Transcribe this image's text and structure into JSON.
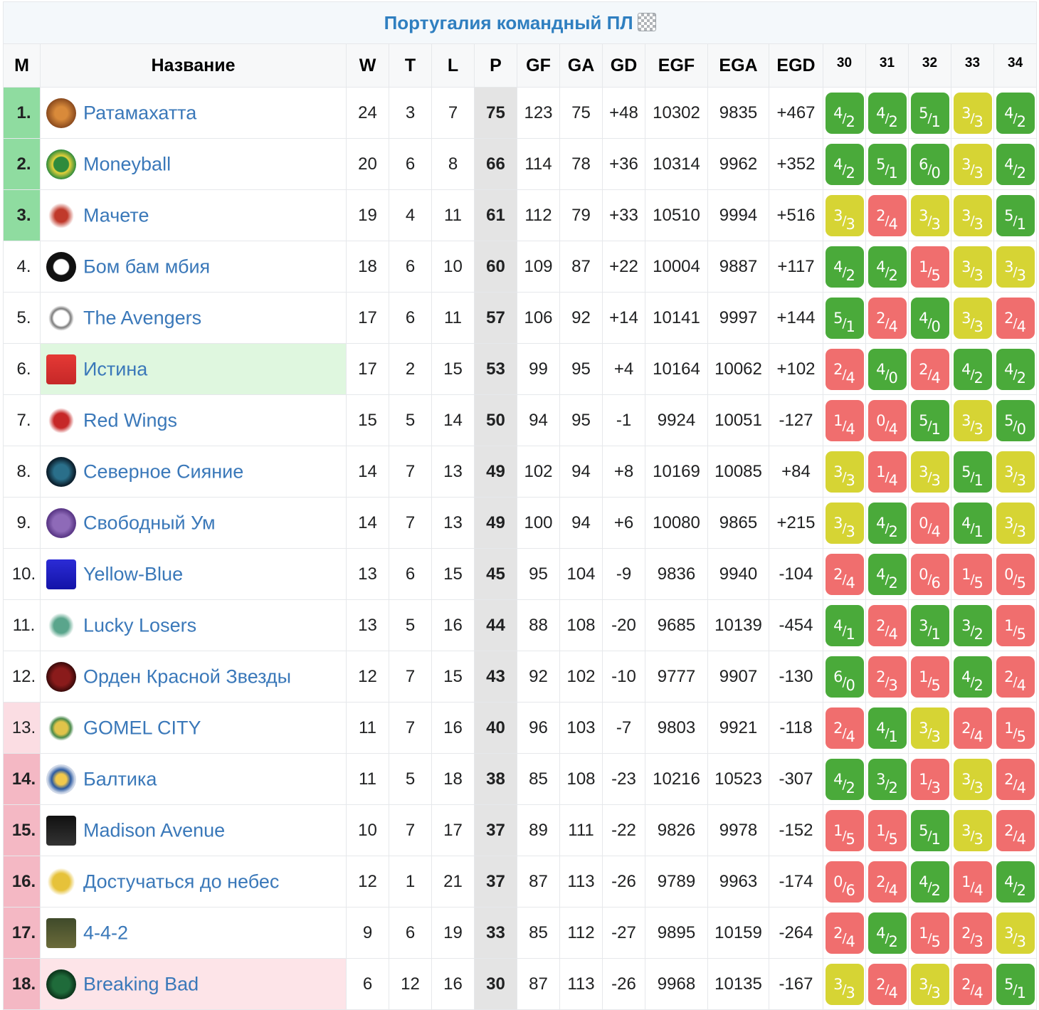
{
  "title": "Португалия командный ПЛ",
  "headers": {
    "pos": "М",
    "name": "Название",
    "w": "W",
    "t": "T",
    "l": "L",
    "p": "P",
    "gf": "GF",
    "ga": "GA",
    "gd": "GD",
    "egf": "EGF",
    "ega": "EGA",
    "egd": "EGD"
  },
  "rounds": [
    "30",
    "31",
    "32",
    "33",
    "34"
  ],
  "colors": {
    "win": "#4aaa3a",
    "draw": "#d6d434",
    "loss": "#f06e6e",
    "link": "#3a78b9"
  },
  "teams": [
    {
      "pos": "1.",
      "name": "Ратамахатта",
      "logo": "ratamahatta-logo",
      "zone": "green",
      "w": "24",
      "t": "3",
      "l": "7",
      "p": "75",
      "gf": "123",
      "ga": "75",
      "gd": "+48",
      "egf": "10302",
      "ega": "9835",
      "egd": "+467",
      "results": [
        {
          "a": "4",
          "b": "2",
          "r": "win"
        },
        {
          "a": "4",
          "b": "2",
          "r": "win"
        },
        {
          "a": "5",
          "b": "1",
          "r": "win"
        },
        {
          "a": "3",
          "b": "3",
          "r": "draw"
        },
        {
          "a": "4",
          "b": "2",
          "r": "win"
        }
      ]
    },
    {
      "pos": "2.",
      "name": "Moneyball",
      "logo": "moneyball-logo",
      "zone": "green",
      "w": "20",
      "t": "6",
      "l": "8",
      "p": "66",
      "gf": "114",
      "ga": "78",
      "gd": "+36",
      "egf": "10314",
      "ega": "9962",
      "egd": "+352",
      "results": [
        {
          "a": "4",
          "b": "2",
          "r": "win"
        },
        {
          "a": "5",
          "b": "1",
          "r": "win"
        },
        {
          "a": "6",
          "b": "0",
          "r": "win"
        },
        {
          "a": "3",
          "b": "3",
          "r": "draw"
        },
        {
          "a": "4",
          "b": "2",
          "r": "win"
        }
      ]
    },
    {
      "pos": "3.",
      "name": "Мачете",
      "logo": "machete-logo",
      "zone": "green",
      "w": "19",
      "t": "4",
      "l": "11",
      "p": "61",
      "gf": "112",
      "ga": "79",
      "gd": "+33",
      "egf": "10510",
      "ega": "9994",
      "egd": "+516",
      "results": [
        {
          "a": "3",
          "b": "3",
          "r": "draw"
        },
        {
          "a": "2",
          "b": "4",
          "r": "loss"
        },
        {
          "a": "3",
          "b": "3",
          "r": "draw"
        },
        {
          "a": "3",
          "b": "3",
          "r": "draw"
        },
        {
          "a": "5",
          "b": "1",
          "r": "win"
        }
      ]
    },
    {
      "pos": "4.",
      "name": "Бом бам мбия",
      "logo": "bom-bam-mbiya-logo",
      "zone": "",
      "w": "18",
      "t": "6",
      "l": "10",
      "p": "60",
      "gf": "109",
      "ga": "87",
      "gd": "+22",
      "egf": "10004",
      "ega": "9887",
      "egd": "+117",
      "results": [
        {
          "a": "4",
          "b": "2",
          "r": "win"
        },
        {
          "a": "4",
          "b": "2",
          "r": "win"
        },
        {
          "a": "1",
          "b": "5",
          "r": "loss"
        },
        {
          "a": "3",
          "b": "3",
          "r": "draw"
        },
        {
          "a": "3",
          "b": "3",
          "r": "draw"
        }
      ]
    },
    {
      "pos": "5.",
      "name": "The Avengers",
      "logo": "avengers-logo",
      "zone": "",
      "w": "17",
      "t": "6",
      "l": "11",
      "p": "57",
      "gf": "106",
      "ga": "92",
      "gd": "+14",
      "egf": "10141",
      "ega": "9997",
      "egd": "+144",
      "results": [
        {
          "a": "5",
          "b": "1",
          "r": "win"
        },
        {
          "a": "2",
          "b": "4",
          "r": "loss"
        },
        {
          "a": "4",
          "b": "0",
          "r": "win"
        },
        {
          "a": "3",
          "b": "3",
          "r": "draw"
        },
        {
          "a": "2",
          "b": "4",
          "r": "loss"
        }
      ]
    },
    {
      "pos": "6.",
      "name": "Истина",
      "logo": "istina-truth-logo",
      "zone": "",
      "hl": "green",
      "w": "17",
      "t": "2",
      "l": "15",
      "p": "53",
      "gf": "99",
      "ga": "95",
      "gd": "+4",
      "egf": "10164",
      "ega": "10062",
      "egd": "+102",
      "results": [
        {
          "a": "2",
          "b": "4",
          "r": "loss"
        },
        {
          "a": "4",
          "b": "0",
          "r": "win"
        },
        {
          "a": "2",
          "b": "4",
          "r": "loss"
        },
        {
          "a": "4",
          "b": "2",
          "r": "win"
        },
        {
          "a": "4",
          "b": "2",
          "r": "win"
        }
      ]
    },
    {
      "pos": "7.",
      "name": "Red Wings",
      "logo": "red-wings-logo",
      "zone": "",
      "w": "15",
      "t": "5",
      "l": "14",
      "p": "50",
      "gf": "94",
      "ga": "95",
      "gd": "-1",
      "egf": "9924",
      "ega": "10051",
      "egd": "-127",
      "results": [
        {
          "a": "1",
          "b": "4",
          "r": "loss"
        },
        {
          "a": "0",
          "b": "4",
          "r": "loss"
        },
        {
          "a": "5",
          "b": "1",
          "r": "win"
        },
        {
          "a": "3",
          "b": "3",
          "r": "draw"
        },
        {
          "a": "5",
          "b": "0",
          "r": "win"
        }
      ]
    },
    {
      "pos": "8.",
      "name": "Северное Сияние",
      "logo": "severnoe-siyanie-logo",
      "zone": "",
      "w": "14",
      "t": "7",
      "l": "13",
      "p": "49",
      "gf": "102",
      "ga": "94",
      "gd": "+8",
      "egf": "10169",
      "ega": "10085",
      "egd": "+84",
      "results": [
        {
          "a": "3",
          "b": "3",
          "r": "draw"
        },
        {
          "a": "1",
          "b": "4",
          "r": "loss"
        },
        {
          "a": "3",
          "b": "3",
          "r": "draw"
        },
        {
          "a": "5",
          "b": "1",
          "r": "win"
        },
        {
          "a": "3",
          "b": "3",
          "r": "draw"
        }
      ]
    },
    {
      "pos": "9.",
      "name": "Свободный Ум",
      "logo": "svobodny-um-logo",
      "zone": "",
      "w": "14",
      "t": "7",
      "l": "13",
      "p": "49",
      "gf": "100",
      "ga": "94",
      "gd": "+6",
      "egf": "10080",
      "ega": "9865",
      "egd": "+215",
      "results": [
        {
          "a": "3",
          "b": "3",
          "r": "draw"
        },
        {
          "a": "4",
          "b": "2",
          "r": "win"
        },
        {
          "a": "0",
          "b": "4",
          "r": "loss"
        },
        {
          "a": "4",
          "b": "1",
          "r": "win"
        },
        {
          "a": "3",
          "b": "3",
          "r": "draw"
        }
      ]
    },
    {
      "pos": "10.",
      "name": "Yellow-Blue",
      "logo": "yellow-blue-logo",
      "zone": "",
      "w": "13",
      "t": "6",
      "l": "15",
      "p": "45",
      "gf": "95",
      "ga": "104",
      "gd": "-9",
      "egf": "9836",
      "ega": "9940",
      "egd": "-104",
      "results": [
        {
          "a": "2",
          "b": "4",
          "r": "loss"
        },
        {
          "a": "4",
          "b": "2",
          "r": "win"
        },
        {
          "a": "0",
          "b": "6",
          "r": "loss"
        },
        {
          "a": "1",
          "b": "5",
          "r": "loss"
        },
        {
          "a": "0",
          "b": "5",
          "r": "loss"
        }
      ]
    },
    {
      "pos": "11.",
      "name": "Lucky Losers",
      "logo": "lucky-losers-logo",
      "zone": "",
      "w": "13",
      "t": "5",
      "l": "16",
      "p": "44",
      "gf": "88",
      "ga": "108",
      "gd": "-20",
      "egf": "9685",
      "ega": "10139",
      "egd": "-454",
      "results": [
        {
          "a": "4",
          "b": "1",
          "r": "win"
        },
        {
          "a": "2",
          "b": "4",
          "r": "loss"
        },
        {
          "a": "3",
          "b": "1",
          "r": "win"
        },
        {
          "a": "3",
          "b": "2",
          "r": "win"
        },
        {
          "a": "1",
          "b": "5",
          "r": "loss"
        }
      ]
    },
    {
      "pos": "12.",
      "name": "Орден Красной Звезды",
      "logo": "orden-krasnoy-zvezdy-logo",
      "zone": "",
      "w": "12",
      "t": "7",
      "l": "15",
      "p": "43",
      "gf": "92",
      "ga": "102",
      "gd": "-10",
      "egf": "9777",
      "ega": "9907",
      "egd": "-130",
      "results": [
        {
          "a": "6",
          "b": "0",
          "r": "win"
        },
        {
          "a": "2",
          "b": "3",
          "r": "loss"
        },
        {
          "a": "1",
          "b": "5",
          "r": "loss"
        },
        {
          "a": "4",
          "b": "2",
          "r": "win"
        },
        {
          "a": "2",
          "b": "4",
          "r": "loss"
        }
      ]
    },
    {
      "pos": "13.",
      "name": "GOMEL CITY",
      "logo": "gomel-city-logo",
      "zone": "lightred",
      "w": "11",
      "t": "7",
      "l": "16",
      "p": "40",
      "gf": "96",
      "ga": "103",
      "gd": "-7",
      "egf": "9803",
      "ega": "9921",
      "egd": "-118",
      "results": [
        {
          "a": "2",
          "b": "4",
          "r": "loss"
        },
        {
          "a": "4",
          "b": "1",
          "r": "win"
        },
        {
          "a": "3",
          "b": "3",
          "r": "draw"
        },
        {
          "a": "2",
          "b": "4",
          "r": "loss"
        },
        {
          "a": "1",
          "b": "5",
          "r": "loss"
        }
      ]
    },
    {
      "pos": "14.",
      "name": "Балтика",
      "logo": "baltika-logo",
      "zone": "red",
      "w": "11",
      "t": "5",
      "l": "18",
      "p": "38",
      "gf": "85",
      "ga": "108",
      "gd": "-23",
      "egf": "10216",
      "ega": "10523",
      "egd": "-307",
      "results": [
        {
          "a": "4",
          "b": "2",
          "r": "win"
        },
        {
          "a": "3",
          "b": "2",
          "r": "win"
        },
        {
          "a": "1",
          "b": "3",
          "r": "loss"
        },
        {
          "a": "3",
          "b": "3",
          "r": "draw"
        },
        {
          "a": "2",
          "b": "4",
          "r": "loss"
        }
      ]
    },
    {
      "pos": "15.",
      "name": "Madison Avenue",
      "logo": "madison-avenue-logo",
      "zone": "red",
      "w": "10",
      "t": "7",
      "l": "17",
      "p": "37",
      "gf": "89",
      "ga": "111",
      "gd": "-22",
      "egf": "9826",
      "ega": "9978",
      "egd": "-152",
      "results": [
        {
          "a": "1",
          "b": "5",
          "r": "loss"
        },
        {
          "a": "1",
          "b": "5",
          "r": "loss"
        },
        {
          "a": "5",
          "b": "1",
          "r": "win"
        },
        {
          "a": "3",
          "b": "3",
          "r": "draw"
        },
        {
          "a": "2",
          "b": "4",
          "r": "loss"
        }
      ]
    },
    {
      "pos": "16.",
      "name": "Достучаться до небес",
      "logo": "dostuchatsya-do-nebes-logo",
      "zone": "red",
      "w": "12",
      "t": "1",
      "l": "21",
      "p": "37",
      "gf": "87",
      "ga": "113",
      "gd": "-26",
      "egf": "9789",
      "ega": "9963",
      "egd": "-174",
      "results": [
        {
          "a": "0",
          "b": "6",
          "r": "loss"
        },
        {
          "a": "2",
          "b": "4",
          "r": "loss"
        },
        {
          "a": "4",
          "b": "2",
          "r": "win"
        },
        {
          "a": "1",
          "b": "4",
          "r": "loss"
        },
        {
          "a": "4",
          "b": "2",
          "r": "win"
        }
      ]
    },
    {
      "pos": "17.",
      "name": "4-4-2",
      "logo": "4-4-2-logo",
      "zone": "red",
      "w": "9",
      "t": "6",
      "l": "19",
      "p": "33",
      "gf": "85",
      "ga": "112",
      "gd": "-27",
      "egf": "9895",
      "ega": "10159",
      "egd": "-264",
      "results": [
        {
          "a": "2",
          "b": "4",
          "r": "loss"
        },
        {
          "a": "4",
          "b": "2",
          "r": "win"
        },
        {
          "a": "1",
          "b": "5",
          "r": "loss"
        },
        {
          "a": "2",
          "b": "3",
          "r": "loss"
        },
        {
          "a": "3",
          "b": "3",
          "r": "draw"
        }
      ]
    },
    {
      "pos": "18.",
      "name": "Breaking Bad",
      "logo": "breaking-bad-logo",
      "zone": "red",
      "hl": "red",
      "w": "6",
      "t": "12",
      "l": "16",
      "p": "30",
      "gf": "87",
      "ga": "113",
      "gd": "-26",
      "egf": "9968",
      "ega": "10135",
      "egd": "-167",
      "results": [
        {
          "a": "3",
          "b": "3",
          "r": "draw"
        },
        {
          "a": "2",
          "b": "4",
          "r": "loss"
        },
        {
          "a": "3",
          "b": "3",
          "r": "draw"
        },
        {
          "a": "2",
          "b": "4",
          "r": "loss"
        },
        {
          "a": "5",
          "b": "1",
          "r": "win"
        }
      ]
    }
  ]
}
